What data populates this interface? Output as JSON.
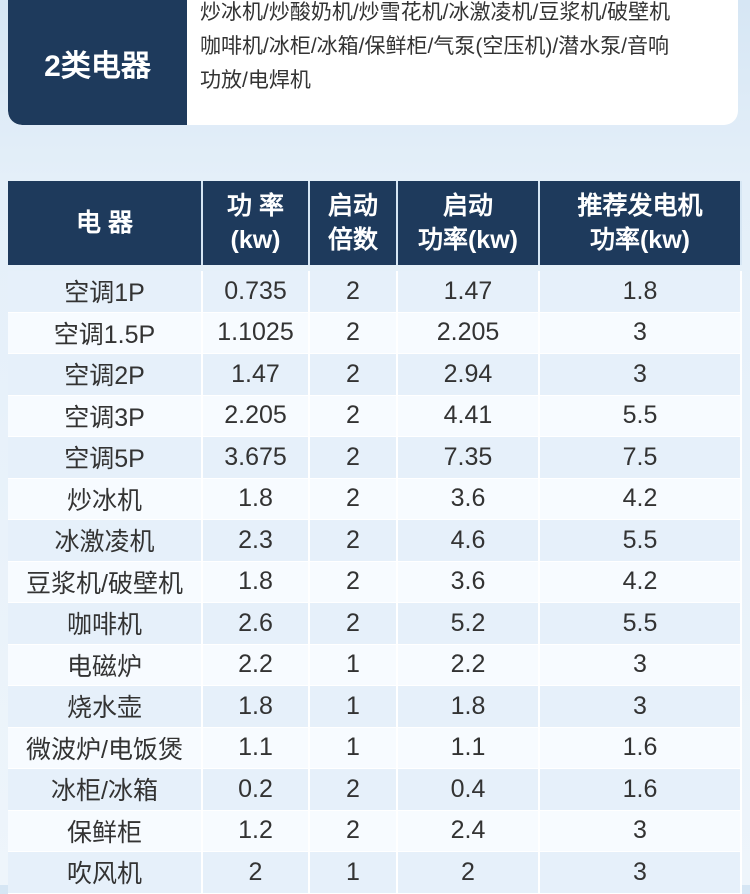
{
  "card": {
    "title": "2类电器",
    "lines": [
      "炒冰机/炒酸奶机/炒雪花机/冰激凌机/豆浆机/破壁机",
      "咖啡机/冰柜/冰箱/保鲜柜/气泵(空压机)/潜水泵/音响",
      "功放/电焊机"
    ]
  },
  "table": {
    "header": [
      [
        "电 器"
      ],
      [
        "功 率",
        "(kw)"
      ],
      [
        "启动",
        "倍数"
      ],
      [
        "启动",
        "功率(kw)"
      ],
      [
        "推荐发电机",
        "功率(kw)"
      ]
    ],
    "rows": [
      [
        "空调1P",
        0.735,
        2,
        1.47,
        1.8
      ],
      [
        "空调1.5P",
        1.1025,
        2,
        2.205,
        3
      ],
      [
        "空调2P",
        1.47,
        2,
        2.94,
        3
      ],
      [
        "空调3P",
        2.205,
        2,
        4.41,
        5.5
      ],
      [
        "空调5P",
        3.675,
        2,
        7.35,
        7.5
      ],
      [
        "炒冰机",
        1.8,
        2,
        3.6,
        4.2
      ],
      [
        "冰激凌机",
        2.3,
        2,
        4.6,
        5.5
      ],
      [
        "豆浆机/破壁机",
        1.8,
        2,
        3.6,
        4.2
      ],
      [
        "咖啡机",
        2.6,
        2,
        5.2,
        5.5
      ],
      [
        "电磁炉",
        2.2,
        1,
        2.2,
        3
      ],
      [
        "烧水壶",
        1.8,
        1,
        1.8,
        3
      ],
      [
        "微波炉/电饭煲",
        1.1,
        1,
        1.1,
        1.6
      ],
      [
        "冰柜/冰箱",
        0.2,
        2,
        0.4,
        1.6
      ],
      [
        "保鲜柜",
        1.2,
        2,
        2.4,
        3
      ],
      [
        "吹风机",
        2,
        1,
        2,
        3
      ]
    ]
  }
}
